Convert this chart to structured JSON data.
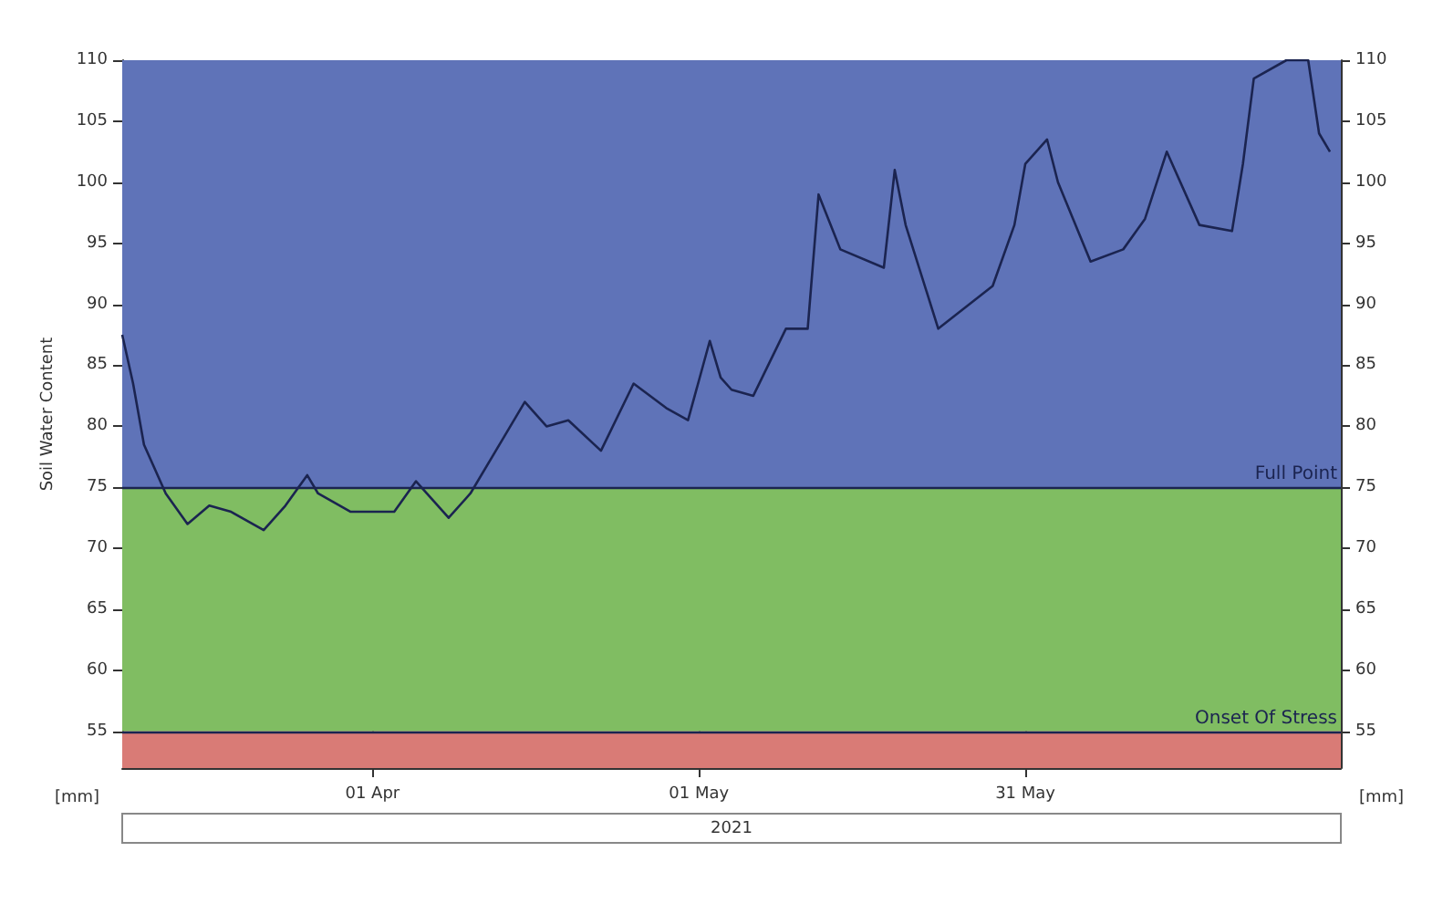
{
  "chart_data": {
    "type": "line",
    "ylabel": "Soil Water Content",
    "xlabel": "2021",
    "annotations": [
      "[mm]",
      "[mm]"
    ],
    "xlim": [
      "2021-03-09",
      "2021-06-29"
    ],
    "xticks": [
      {
        "value": "2021-04-01",
        "label": "01 Apr"
      },
      {
        "value": "2021-05-01",
        "label": "01 May"
      },
      {
        "value": "2021-05-31",
        "label": "31 May"
      }
    ],
    "ylim": [
      52,
      110
    ],
    "yticks": [
      55,
      60,
      65,
      70,
      75,
      80,
      85,
      90,
      95,
      100,
      105,
      110
    ],
    "y2lim": [
      52,
      110
    ],
    "y2ticks": [
      55,
      60,
      65,
      70,
      75,
      80,
      85,
      90,
      95,
      100,
      105,
      110
    ],
    "grid": "x",
    "marker": "none",
    "line_style": "solid",
    "bands": [
      {
        "axis": "y",
        "from": 75,
        "to": 110,
        "color": "#5f73b8"
      },
      {
        "axis": "y",
        "from": 55,
        "to": 75,
        "color": "#80bd62"
      },
      {
        "axis": "y",
        "from": 52,
        "to": 55,
        "color": "#d97b76"
      }
    ],
    "ref_lines": [
      {
        "axis": "y",
        "value": 75,
        "label": "Full Point",
        "color": "#1b2450"
      },
      {
        "axis": "y",
        "value": 55,
        "label": "Onset Of Stress",
        "color": "#1b2450"
      }
    ],
    "series": [
      {
        "color": "#1b2450",
        "x": [
          "2021-03-09",
          "2021-03-10",
          "2021-03-11",
          "2021-03-13",
          "2021-03-15",
          "2021-03-17",
          "2021-03-19",
          "2021-03-22",
          "2021-03-24",
          "2021-03-26",
          "2021-03-27",
          "2021-03-30",
          "2021-04-03",
          "2021-04-05",
          "2021-04-08",
          "2021-04-10",
          "2021-04-12",
          "2021-04-15",
          "2021-04-17",
          "2021-04-19",
          "2021-04-22",
          "2021-04-25",
          "2021-04-28",
          "2021-04-30",
          "2021-05-02",
          "2021-05-03",
          "2021-05-04",
          "2021-05-06",
          "2021-05-09",
          "2021-05-11",
          "2021-05-12",
          "2021-05-14",
          "2021-05-18",
          "2021-05-19",
          "2021-05-20",
          "2021-05-23",
          "2021-05-28",
          "2021-05-30",
          "2021-05-31",
          "2021-06-02",
          "2021-06-03",
          "2021-06-06",
          "2021-06-09",
          "2021-06-11",
          "2021-06-13",
          "2021-06-16",
          "2021-06-19",
          "2021-06-20",
          "2021-06-21",
          "2021-06-24",
          "2021-06-26",
          "2021-06-27",
          "2021-06-28"
        ],
        "values": [
          87.5,
          83.5,
          78.5,
          74.5,
          72,
          73.5,
          73,
          71.5,
          73.5,
          76,
          74.5,
          73,
          73,
          75.5,
          72.5,
          74.5,
          77.5,
          82,
          80,
          80.5,
          78,
          83.5,
          81.5,
          80.5,
          87,
          84,
          83,
          82.5,
          88,
          88,
          99,
          94.5,
          93,
          101,
          96.5,
          88,
          91.5,
          96.5,
          101.5,
          103.5,
          100,
          93.5,
          94.5,
          97,
          102.5,
          96.5,
          96,
          101.5,
          108.5,
          110,
          110,
          104,
          102.5
        ]
      }
    ]
  }
}
